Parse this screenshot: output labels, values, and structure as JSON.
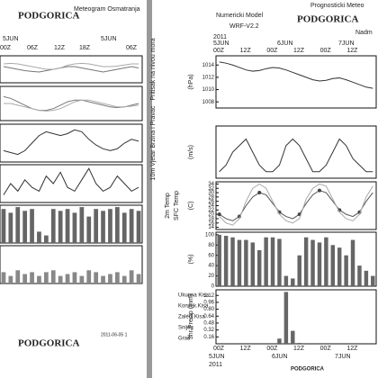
{
  "page": {
    "left": {
      "title": "PODGORICA",
      "subtitle": "Meteogram Osmatranja",
      "days": [
        "5JUN",
        "5JUN"
      ],
      "hours": [
        "00Z",
        "06Z",
        "12Z",
        "18Z",
        "06Z"
      ],
      "footer": "PODGORICA",
      "stamp": "2011-06-05 1"
    },
    "right": {
      "header": "Prognosticki Meteo",
      "model": "Numericki Model",
      "version": "WRF-V2.2",
      "title": "PODGORICA",
      "station": "Nadm",
      "year": "2011",
      "days": [
        "5JUN",
        "6JUN",
        "7JUN"
      ],
      "hours": [
        "00Z",
        "12Z",
        "00Z",
        "12Z",
        "00Z",
        "12Z"
      ],
      "bottom_hours": [
        "00Z",
        "12Z",
        "00Z",
        "12Z",
        "00Z",
        "12Z"
      ],
      "bottom_days": [
        "5JUN",
        "6JUN",
        "7JUN"
      ],
      "bottom_year": "2011",
      "footer": "PODGORICA",
      "precip_legend": [
        "Ukupna Kisa",
        "Konvek.Kisa",
        "Zaledj.Kisa",
        "Snijeg",
        "Grad"
      ]
    }
  },
  "chart_data": [
    {
      "type": "line",
      "ylim": [
        0,
        1
      ],
      "series": [
        {
          "color": "#777",
          "values": [
            0.6,
            0.55,
            0.5,
            0.45,
            0.42,
            0.4,
            0.45,
            0.5,
            0.55,
            0.6,
            0.6,
            0.55,
            0.5,
            0.45,
            0.4,
            0.45,
            0.5,
            0.55,
            0.6,
            0.55
          ]
        },
        {
          "color": "#aaa",
          "values": [
            0.7,
            0.72,
            0.7,
            0.65,
            0.6,
            0.55,
            0.5,
            0.5,
            0.55,
            0.65,
            0.7,
            0.72,
            0.7,
            0.65,
            0.6,
            0.6,
            0.62,
            0.66,
            0.7,
            0.7
          ]
        }
      ],
      "ylabel": "Pritisak na nivou mora"
    },
    {
      "type": "line",
      "ylim": [
        0,
        1
      ],
      "series": [
        {
          "color": "#777",
          "values": [
            0.7,
            0.65,
            0.55,
            0.45,
            0.35,
            0.3,
            0.3,
            0.35,
            0.45,
            0.55,
            0.6,
            0.6,
            0.55,
            0.5,
            0.45,
            0.4,
            0.38,
            0.4,
            0.45,
            0.5
          ]
        },
        {
          "color": "#aaa",
          "values": [
            0.5,
            0.5,
            0.45,
            0.4,
            0.35,
            0.3,
            0.28,
            0.3,
            0.35,
            0.45,
            0.55,
            0.6,
            0.6,
            0.55,
            0.5,
            0.45,
            0.4,
            0.4,
            0.42,
            0.45
          ]
        }
      ]
    },
    {
      "type": "line",
      "ylim": [
        0,
        1
      ],
      "series": [
        {
          "color": "#333",
          "values": [
            0.3,
            0.25,
            0.2,
            0.3,
            0.5,
            0.7,
            0.8,
            0.75,
            0.7,
            0.75,
            0.85,
            0.8,
            0.6,
            0.45,
            0.35,
            0.3,
            0.35,
            0.5,
            0.6,
            0.55
          ]
        }
      ],
      "ylabel": "10m Vjetar Brzina i Pravac"
    },
    {
      "type": "line",
      "ylim": [
        0,
        1
      ],
      "series": [
        {
          "color": "#333",
          "values": [
            0.2,
            0.5,
            0.3,
            0.6,
            0.4,
            0.3,
            0.7,
            0.5,
            0.8,
            0.4,
            0.3,
            0.6,
            0.9,
            0.5,
            0.3,
            0.4,
            0.7,
            0.5,
            0.3,
            0.4
          ]
        }
      ]
    },
    {
      "type": "bar",
      "ylim": [
        0,
        1
      ],
      "series": [
        {
          "color": "#666",
          "values": [
            0.9,
            0.8,
            0.95,
            0.85,
            0.9,
            0.3,
            0.2,
            0.9,
            0.85,
            0.9,
            0.8,
            0.95,
            0.7,
            0.9,
            0.85,
            0.9,
            0.95,
            0.8,
            0.9,
            0.85
          ]
        }
      ]
    },
    {
      "type": "bar",
      "ylim": [
        0,
        1
      ],
      "series": [
        {
          "color": "#888",
          "values": [
            0.3,
            0.2,
            0.35,
            0.25,
            0.3,
            0.2,
            0.3,
            0.35,
            0.2,
            0.25,
            0.3,
            0.2,
            0.35,
            0.3,
            0.2,
            0.25,
            0.3,
            0.2,
            0.35,
            0.25
          ]
        }
      ]
    },
    {
      "type": "line",
      "ylim": [
        1007,
        1015.5
      ],
      "yticks": [
        1014,
        1012,
        1010,
        1008
      ],
      "ylabel": "(hPa)",
      "series": [
        {
          "color": "#333",
          "values": [
            1014.5,
            1014.3,
            1014,
            1013.6,
            1013.2,
            1013,
            1013.1,
            1013.4,
            1013.6,
            1013.5,
            1013.2,
            1012.8,
            1012.4,
            1012,
            1011.6,
            1011.4,
            1011.5,
            1011.8,
            1011.9,
            1011.6,
            1011.2,
            1010.8,
            1010.4,
            1010.2
          ]
        }
      ]
    },
    {
      "type": "line",
      "ylim": [
        0,
        8
      ],
      "ylabel": "(m/s)",
      "series": [
        {
          "color": "#333",
          "values": [
            1,
            2,
            4,
            5,
            6,
            4,
            2,
            1,
            1,
            2,
            5,
            6,
            5,
            3,
            1,
            1,
            2,
            4,
            6,
            5,
            3,
            2,
            1,
            1
          ]
        }
      ]
    },
    {
      "type": "line",
      "ylim": [
        13,
        35
      ],
      "yticks": [
        34,
        32,
        30,
        28,
        26,
        24,
        22,
        20,
        18,
        16,
        14
      ],
      "ylabel": "(C)",
      "series": [
        {
          "name": "2m Temp",
          "color": "#555",
          "values": [
            20,
            18,
            17,
            19,
            24,
            28,
            30,
            29,
            25,
            21,
            19,
            18,
            20,
            25,
            29,
            31,
            30,
            26,
            22,
            20,
            19,
            21,
            26,
            30
          ]
        },
        {
          "name": "SFC Temp",
          "color": "#aaa",
          "values": [
            19,
            16,
            15,
            18,
            26,
            32,
            34,
            32,
            26,
            20,
            17,
            16,
            18,
            27,
            32,
            34,
            33,
            27,
            21,
            18,
            17,
            20,
            28,
            33
          ]
        }
      ]
    },
    {
      "type": "bar",
      "ylim": [
        0,
        105
      ],
      "yticks": [
        100,
        80,
        60,
        40,
        20,
        0
      ],
      "ylabel": "(%)",
      "series": [
        {
          "color": "#666",
          "values": [
            100,
            98,
            95,
            90,
            90,
            85,
            70,
            95,
            95,
            92,
            20,
            15,
            60,
            95,
            90,
            85,
            95,
            80,
            75,
            60,
            90,
            40,
            30,
            20
          ]
        }
      ]
    },
    {
      "type": "bar",
      "ylim": [
        0,
        1.25
      ],
      "yticks": [
        1.12,
        0.96,
        {
          "value": 0.8,
          "label": "0.80"
        },
        0.64,
        0.48,
        0.32,
        0.16
      ],
      "ylabel": "3hr Precip (mm)",
      "series": [
        {
          "color": "#666",
          "values": [
            0,
            0,
            0,
            0,
            0,
            0,
            0,
            0,
            0,
            0.12,
            1.2,
            0.3,
            0.02,
            0,
            0,
            0,
            0,
            0,
            0,
            0,
            0,
            0,
            0,
            0
          ]
        }
      ]
    }
  ]
}
